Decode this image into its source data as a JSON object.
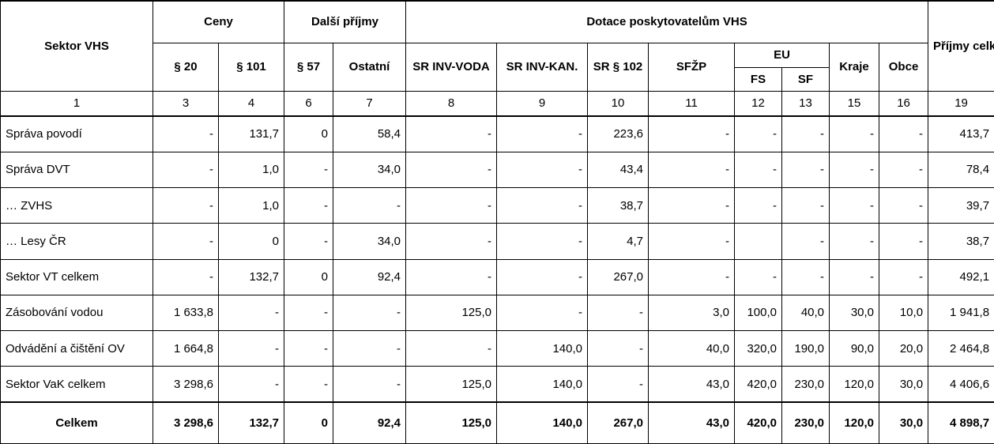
{
  "header": {
    "sector": "Sektor VHS",
    "ceny": "Ceny",
    "dalsi": "Další příjmy",
    "dotace": "Dotace poskytovatelům  VHS",
    "celkem": "Příjmy\ncelkem",
    "p20": "§ 20",
    "p101": "§ 101",
    "p57": "§ 57",
    "ostatni": "Ostatní",
    "sr_voda": "SR\nINV-VODA",
    "sr_kan": "SR\nINV-KAN.",
    "sr_102": "SR\n§ 102",
    "sfzp": "SFŽP",
    "eu": "EU",
    "fs": "FS",
    "sf": "SF",
    "kraje": "Kraje",
    "obce": "Obce"
  },
  "column_numbers": [
    "1",
    "3",
    "4",
    "6",
    "7",
    "8",
    "9",
    "10",
    "11",
    "12",
    "13",
    "15",
    "16",
    "19"
  ],
  "rows": [
    {
      "label": "Správa povodí",
      "values": [
        "-",
        "131,7",
        "0",
        "58,4",
        "-",
        "-",
        "223,6",
        "-",
        "-",
        "-",
        "-",
        "-",
        "413,7"
      ]
    },
    {
      "label": "Správa DVT",
      "values": [
        "-",
        "1,0",
        "-",
        "34,0",
        "-",
        "-",
        "43,4",
        "-",
        "-",
        "-",
        "-",
        "-",
        "78,4"
      ]
    },
    {
      "label": "… ZVHS",
      "values": [
        "-",
        "1,0",
        "-",
        "-",
        "-",
        "-",
        "38,7",
        "-",
        "-",
        "-",
        "-",
        "-",
        "39,7"
      ]
    },
    {
      "label": "… Lesy ČR",
      "values": [
        "-",
        "0",
        "-",
        "34,0",
        "-",
        "-",
        "4,7",
        "-",
        "",
        "-",
        "-",
        "-",
        "38,7"
      ]
    },
    {
      "label": "Sektor VT celkem",
      "values": [
        "-",
        "132,7",
        "0",
        "92,4",
        "-",
        "-",
        "267,0",
        "-",
        "-",
        "-",
        "-",
        "-",
        "492,1"
      ]
    },
    {
      "label": "Zásobování  vodou",
      "values": [
        "1 633,8",
        "-",
        "-",
        "-",
        "125,0",
        "-",
        "-",
        "3,0",
        "100,0",
        "40,0",
        "30,0",
        "10,0",
        "1 941,8"
      ]
    },
    {
      "label": "Odvádění  a čištění OV",
      "values": [
        "1 664,8",
        "-",
        "-",
        "-",
        "-",
        "140,0",
        "-",
        "40,0",
        "320,0",
        "190,0",
        "90,0",
        "20,0",
        "2 464,8"
      ]
    },
    {
      "label": "Sektor VaK celkem",
      "values": [
        "3 298,6",
        "-",
        "-",
        "-",
        "125,0",
        "140,0",
        "-",
        "43,0",
        "420,0",
        "230,0",
        "120,0",
        "30,0",
        "4 406,6"
      ]
    }
  ],
  "total": {
    "label": "Celkem",
    "values": [
      "3 298,6",
      "132,7",
      "0",
      "92,4",
      "125,0",
      "140,0",
      "267,0",
      "43,0",
      "420,0",
      "230,0",
      "120,0",
      "30,0",
      "4 898,7"
    ]
  }
}
